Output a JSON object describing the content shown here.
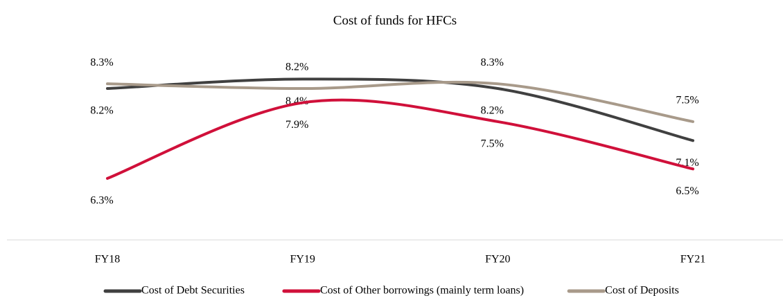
{
  "chart_data": {
    "type": "line",
    "title": "Cost of funds for HFCs",
    "categories": [
      "FY18",
      "FY19",
      "FY20",
      "FY21"
    ],
    "series": [
      {
        "name": "Cost of Debt Securities",
        "color": "#404040",
        "values": [
          8.2,
          8.4,
          8.2,
          7.1
        ],
        "value_labels": [
          "8.2%",
          "8.4%",
          "8.2%",
          "7.1%"
        ]
      },
      {
        "name": "Cost of Other borrowings (mainly term loans)",
        "color": "#d0103a",
        "values": [
          6.3,
          7.9,
          7.5,
          6.5
        ],
        "value_labels": [
          "6.3%",
          "7.9%",
          "7.5%",
          "6.5%"
        ]
      },
      {
        "name": "Cost of Deposits",
        "color": "#a89a8a",
        "values": [
          8.3,
          8.2,
          8.3,
          7.5
        ],
        "value_labels": [
          "8.3%",
          "8.2%",
          "8.3%",
          "7.5%"
        ]
      }
    ],
    "ylim": [
      5,
      9.2
    ]
  }
}
